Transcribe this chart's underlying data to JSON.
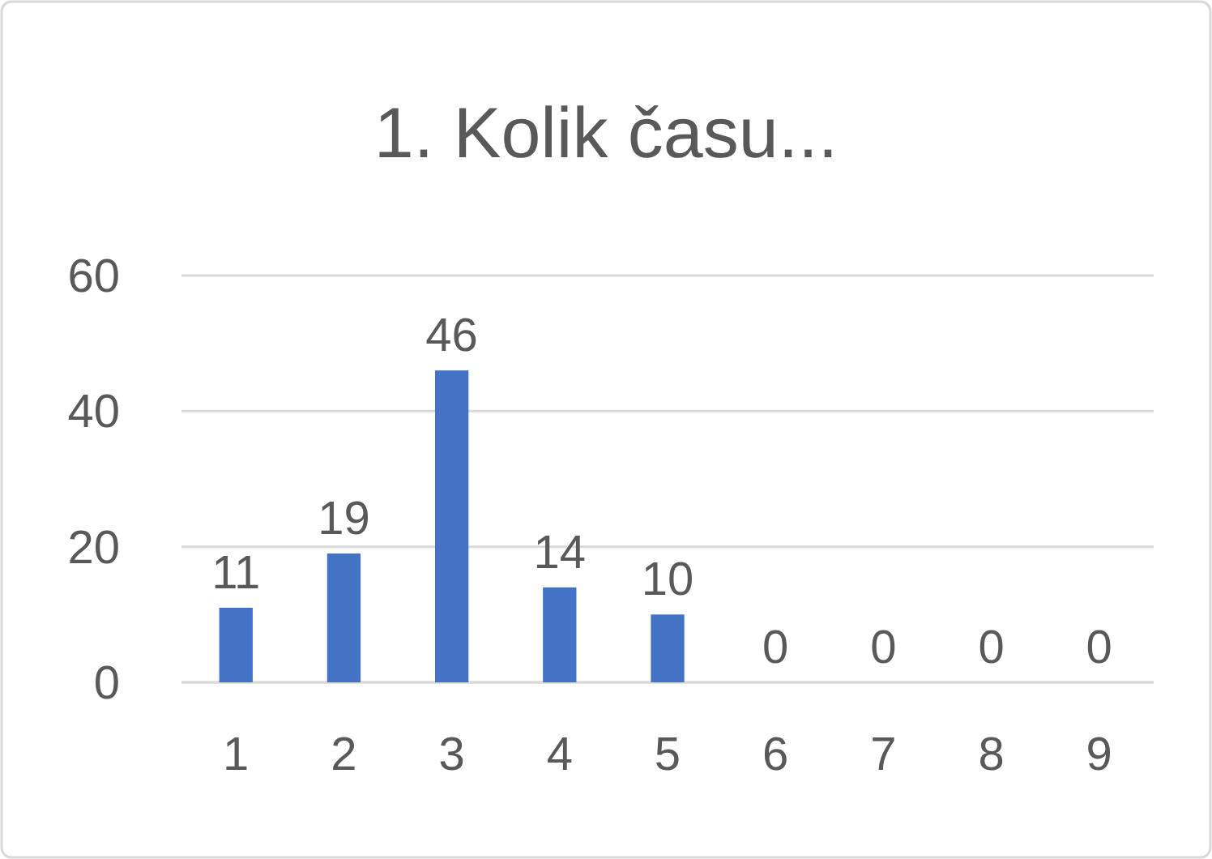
{
  "chart_data": {
    "type": "bar",
    "title": "1. Kolik času...",
    "categories": [
      "1",
      "2",
      "3",
      "4",
      "5",
      "6",
      "7",
      "8",
      "9"
    ],
    "values": [
      11,
      19,
      46,
      14,
      10,
      0,
      0,
      0,
      0
    ],
    "color": "#4472c4",
    "ylim": [
      0,
      60
    ],
    "yticks": [
      0,
      20,
      40,
      60
    ],
    "grid": "y",
    "data_labels": true
  }
}
